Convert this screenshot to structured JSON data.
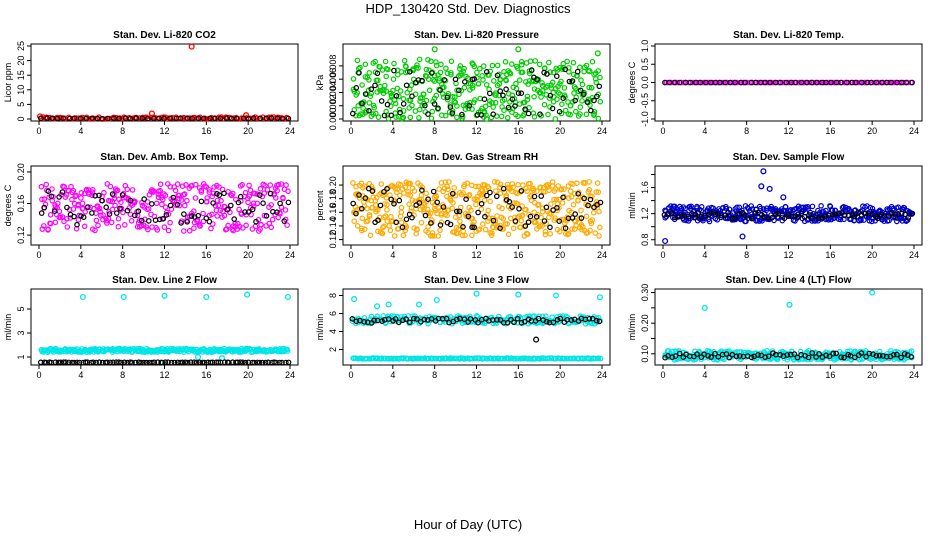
{
  "figure": {
    "title": "HDP_130420  Std. Dev. Diagnostics",
    "xlabel": "Hour of Day (UTC)"
  },
  "chart_data": [
    {
      "type": "scatter",
      "title": "Stan. Dev. Li-820 CO2",
      "ylabel": "Licor ppm",
      "xlim": [
        0,
        24
      ],
      "xticks": [
        0,
        4,
        8,
        12,
        16,
        20,
        24
      ],
      "ylim": [
        0,
        25
      ],
      "yticks": [
        0,
        5,
        10,
        15,
        20,
        25
      ],
      "series": [
        {
          "color": "#ff0000",
          "pattern": {
            "base": 0.3,
            "spread": 0.35,
            "n": 120
          },
          "outliers": [
            [
              0.1,
              0.9
            ],
            [
              10.8,
              1.9
            ],
            [
              14.6,
              24.8
            ],
            [
              19.8,
              1.3
            ]
          ]
        },
        {
          "color": "#000000",
          "pattern": {
            "base": 0.2,
            "spread": 0.1,
            "n": 45
          },
          "outliers": []
        }
      ]
    },
    {
      "type": "scatter",
      "title": "Stan. Dev. Li-820 Pressure",
      "ylabel": "kPa",
      "xlim": [
        0,
        24
      ],
      "xticks": [
        0,
        4,
        8,
        12,
        16,
        20,
        24
      ],
      "ylim": [
        0,
        0.011
      ],
      "yticks": [
        0.0,
        0.002,
        0.004,
        0.006,
        0.008
      ],
      "ytick_labels": [
        "0.000",
        "0.002",
        "0.004",
        "0.006",
        "0.008"
      ],
      "series": [
        {
          "color": "#00cc00",
          "pattern": {
            "base": 0.0045,
            "spread": 0.0045,
            "n": 420
          },
          "outliers": [
            [
              8.0,
              0.0105
            ],
            [
              16.0,
              0.0105
            ],
            [
              23.6,
              0.0099
            ],
            [
              22.8,
              0.0072
            ]
          ]
        },
        {
          "color": "#000000",
          "pattern": {
            "base": 0.004,
            "spread": 0.0035,
            "n": 80
          },
          "outliers": []
        }
      ]
    },
    {
      "type": "scatter",
      "title": "Stan. Dev. Li-820 Temp.",
      "ylabel": "degrees C",
      "xlim": [
        0,
        24
      ],
      "xticks": [
        0,
        4,
        8,
        12,
        16,
        20,
        24
      ],
      "ylim": [
        -1,
        1
      ],
      "yticks": [
        -1.0,
        -0.5,
        0.0,
        0.5,
        1.0
      ],
      "ytick_labels": [
        "-1.0",
        "-0.5",
        "0.0",
        "0.5",
        "1.0"
      ],
      "series": [
        {
          "color": "#ff00ff",
          "pattern": {
            "base": 0.0,
            "spread": 0.0,
            "n": 150
          },
          "outliers": []
        },
        {
          "color": "#000000",
          "pattern": {
            "base": 0.0,
            "spread": 0.0,
            "n": 50
          },
          "outliers": []
        }
      ]
    },
    {
      "type": "scatter",
      "title": "Stan. Dev. Amb. Box Temp.",
      "ylabel": "degrees C",
      "xlim": [
        0,
        24
      ],
      "xticks": [
        0,
        4,
        8,
        12,
        16,
        20,
        24
      ],
      "ylim": [
        0.11,
        0.205
      ],
      "yticks": [
        0.12,
        0.16,
        0.2
      ],
      "ytick_labels": [
        "0.12",
        "0.16",
        "0.20"
      ],
      "series": [
        {
          "color": "#ff00ff",
          "pattern": {
            "base": 0.155,
            "spread": 0.03,
            "n": 340
          },
          "outliers": []
        },
        {
          "color": "#000000",
          "pattern": {
            "base": 0.155,
            "spread": 0.022,
            "n": 70
          },
          "outliers": []
        }
      ]
    },
    {
      "type": "scatter",
      "title": "Stan. Dev. Gas Stream RH",
      "ylabel": "percent",
      "xlim": [
        0,
        24
      ],
      "xticks": [
        0,
        4,
        8,
        12,
        16,
        20,
        24
      ],
      "ylim": [
        0.115,
        0.225
      ],
      "yticks": [
        0.12,
        0.14,
        0.16,
        0.18,
        0.2
      ],
      "ytick_labels": [
        "0.12",
        "0.14",
        "0.16",
        "0.18",
        "0.20"
      ],
      "series": [
        {
          "color": "#ffaa00",
          "pattern": {
            "base": 0.165,
            "spread": 0.04,
            "n": 460
          },
          "outliers": []
        },
        {
          "color": "#000000",
          "pattern": {
            "base": 0.165,
            "spread": 0.03,
            "n": 80
          },
          "outliers": []
        }
      ]
    },
    {
      "type": "scatter",
      "title": "Stan. Dev. Sample Flow",
      "ylabel": "ml/min",
      "xlim": [
        0,
        24
      ],
      "xticks": [
        0,
        4,
        8,
        12,
        16,
        20,
        24
      ],
      "ylim": [
        0.75,
        1.9
      ],
      "yticks": [
        0.8,
        1.0,
        1.2,
        1.4,
        1.6,
        1.8
      ],
      "ytick_labels": [
        "0.8",
        "",
        "1.2",
        "",
        "1.6",
        ""
      ],
      "series": [
        {
          "color": "#0000cc",
          "pattern": {
            "base": 1.2,
            "spread": 0.12,
            "n": 380
          },
          "outliers": [
            [
              0.2,
              0.78
            ],
            [
              9.6,
              1.85
            ],
            [
              9.4,
              1.62
            ],
            [
              10.2,
              1.58
            ],
            [
              11.5,
              1.45
            ],
            [
              7.6,
              0.85
            ]
          ]
        },
        {
          "color": "#000000",
          "pattern": {
            "base": 1.17,
            "spread": 0.05,
            "n": 75
          },
          "outliers": []
        }
      ]
    },
    {
      "type": "scatter",
      "title": "Stan. Dev. Line 2 Flow",
      "ylabel": "ml/min",
      "xlim": [
        0,
        24
      ],
      "xticks": [
        0,
        4,
        8,
        12,
        16,
        20,
        24
      ],
      "ylim": [
        0.5,
        6.5
      ],
      "yticks": [
        1,
        3,
        5
      ],
      "ytick_labels": [
        "1",
        "3",
        "5"
      ],
      "series": [
        {
          "color": "#00e5e5",
          "pattern": {
            "base": 1.55,
            "spread": 0.15,
            "n": 300
          },
          "outliers": [
            [
              4.2,
              6.0
            ],
            [
              8.1,
              6.0
            ],
            [
              12.0,
              6.1
            ],
            [
              16.0,
              6.0
            ],
            [
              19.9,
              6.2
            ],
            [
              23.8,
              6.0
            ],
            [
              15.2,
              1.0
            ],
            [
              17.5,
              0.9
            ]
          ]
        },
        {
          "color": "#000000",
          "pattern": {
            "base": 0.55,
            "spread": 0.02,
            "n": 90
          },
          "outliers": []
        }
      ]
    },
    {
      "type": "scatter",
      "title": "Stan. Dev. Line 3 Flow",
      "ylabel": "ml/min",
      "xlim": [
        0,
        24
      ],
      "xticks": [
        0,
        4,
        8,
        12,
        16,
        20,
        24
      ],
      "ylim": [
        0.5,
        8.5
      ],
      "yticks": [
        2,
        4,
        6,
        8
      ],
      "ytick_labels": [
        "2",
        "4",
        "6",
        "8"
      ],
      "series": [
        {
          "color": "#00e5e5",
          "pattern": {
            "base": 1.0,
            "spread": 0.05,
            "n": 170
          },
          "outliers": [
            [
              0.3,
              7.6
            ],
            [
              2.5,
              6.8
            ],
            [
              3.6,
              7.0
            ],
            [
              6.5,
              7.0
            ],
            [
              8.2,
              7.5
            ],
            [
              12.0,
              8.2
            ],
            [
              16.0,
              8.1
            ],
            [
              19.6,
              8.0
            ],
            [
              23.8,
              7.8
            ]
          ]
        },
        {
          "color": "#00e5e5",
          "pattern": {
            "base": 5.3,
            "spread": 0.45,
            "n": 210
          },
          "outliers": []
        },
        {
          "color": "#000000",
          "pattern": {
            "base": 5.2,
            "spread": 0.25,
            "n": 70
          },
          "outliers": [
            [
              17.7,
              3.1
            ]
          ]
        }
      ]
    },
    {
      "type": "scatter",
      "title": "Stan. Dev. Line 4 (LT) Flow",
      "ylabel": "ml/min",
      "xlim": [
        0,
        24
      ],
      "xticks": [
        0,
        4,
        8,
        12,
        16,
        20,
        24
      ],
      "ylim": [
        0.07,
        0.305
      ],
      "yticks": [
        0.1,
        0.15,
        0.2,
        0.25,
        0.3
      ],
      "ytick_labels": [
        "0.10",
        "",
        "0.20",
        "",
        "0.30"
      ],
      "series": [
        {
          "color": "#00e5e5",
          "pattern": {
            "base": 0.095,
            "spread": 0.015,
            "n": 320
          },
          "outliers": [
            [
              4.0,
              0.25
            ],
            [
              12.1,
              0.26
            ],
            [
              20.0,
              0.3
            ]
          ]
        },
        {
          "color": "#000000",
          "pattern": {
            "base": 0.095,
            "spread": 0.008,
            "n": 70
          },
          "outliers": []
        }
      ]
    }
  ]
}
